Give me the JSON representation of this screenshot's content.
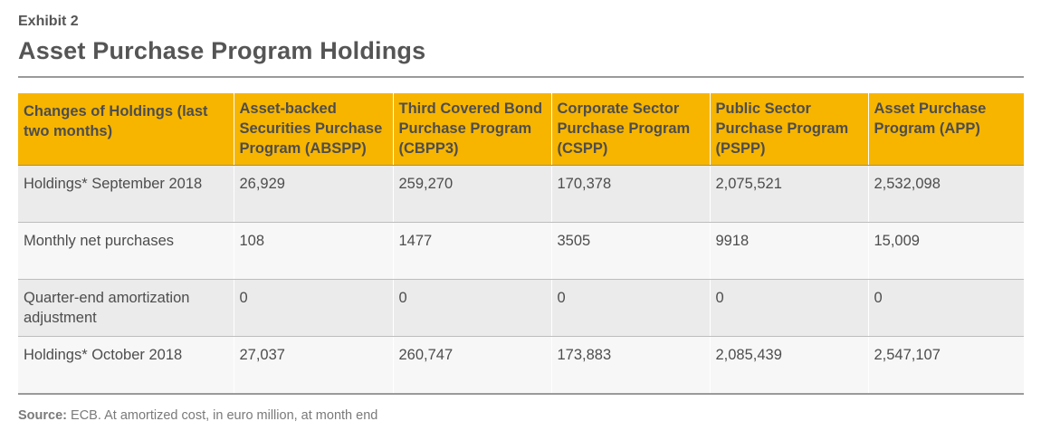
{
  "exhibit_label": "Exhibit 2",
  "title": "Asset Purchase Program Holdings",
  "table": {
    "headers": [
      "Changes of Holdings (last two months)",
      "Asset-backed Securities Purchase Program (ABSPP)",
      "Third Covered Bond Purchase Program (CBPP3)",
      "Corporate Sector Purchase Program (CSPP)",
      "Public Sector Purchase Program (PSPP)",
      "Asset Purchase Program (APP)"
    ],
    "rows": [
      [
        "Holdings* September 2018",
        "26,929",
        "259,270",
        "170,378",
        "2,075,521",
        "2,532,098"
      ],
      [
        "Monthly net purchases",
        "108",
        "1477",
        "3505",
        "9918",
        "15,009"
      ],
      [
        "Quarter-end amortization adjustment",
        "0",
        "0",
        "0",
        "0",
        "0"
      ],
      [
        "Holdings* October 2018",
        "27,037",
        "260,747",
        "173,883",
        "2,085,439",
        "2,547,107"
      ]
    ]
  },
  "source": {
    "label": "Source:",
    "text": " ECB. At amortized cost, in euro million, at month end"
  },
  "colors": {
    "header_bg": "#f7b500",
    "row_dark": "#ebebeb",
    "row_light": "#f7f7f7",
    "rule": "#9a9a9a"
  }
}
